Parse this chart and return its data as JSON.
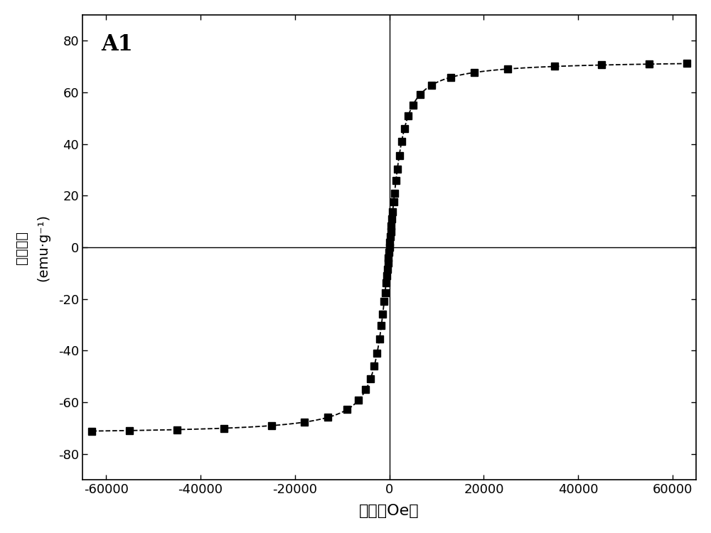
{
  "title_label": "A1",
  "xlabel": "磁矩（Oe）",
  "ylabel_line1": "磁化强度",
  "ylabel_line2": "(emu·g⁻¹)",
  "xlim": [
    -65000,
    65000
  ],
  "ylim": [
    -90,
    90
  ],
  "xticks": [
    -60000,
    -40000,
    -20000,
    0,
    20000,
    40000,
    60000
  ],
  "yticks": [
    -80,
    -60,
    -40,
    -20,
    0,
    20,
    40,
    60,
    80
  ],
  "saturation_mag": 72.5,
  "background_color": "#ffffff",
  "line_color": "#000000",
  "marker_color": "#000000",
  "marker": "s",
  "marker_size": 7,
  "line_style": "--",
  "line_width": 1.3,
  "xlabel_fontsize": 16,
  "ylabel_fontsize": 14,
  "title_fontsize": 22,
  "tick_fontsize": 13,
  "H_markers": [
    -63000,
    -55000,
    -45000,
    -35000,
    -25000,
    -18000,
    -13000,
    -9000,
    -6500,
    -5000,
    -4000,
    -3200,
    -2600,
    -2100,
    -1700,
    -1400,
    -1100,
    -900,
    -700,
    -550,
    -420,
    -300,
    -200,
    -100,
    0,
    100,
    200,
    300,
    420,
    550,
    700,
    900,
    1100,
    1400,
    1700,
    2100,
    2600,
    3200,
    4000,
    5000,
    6500,
    9000,
    13000,
    18000,
    25000,
    35000,
    45000,
    55000,
    63000
  ],
  "a_langevin": 1200
}
